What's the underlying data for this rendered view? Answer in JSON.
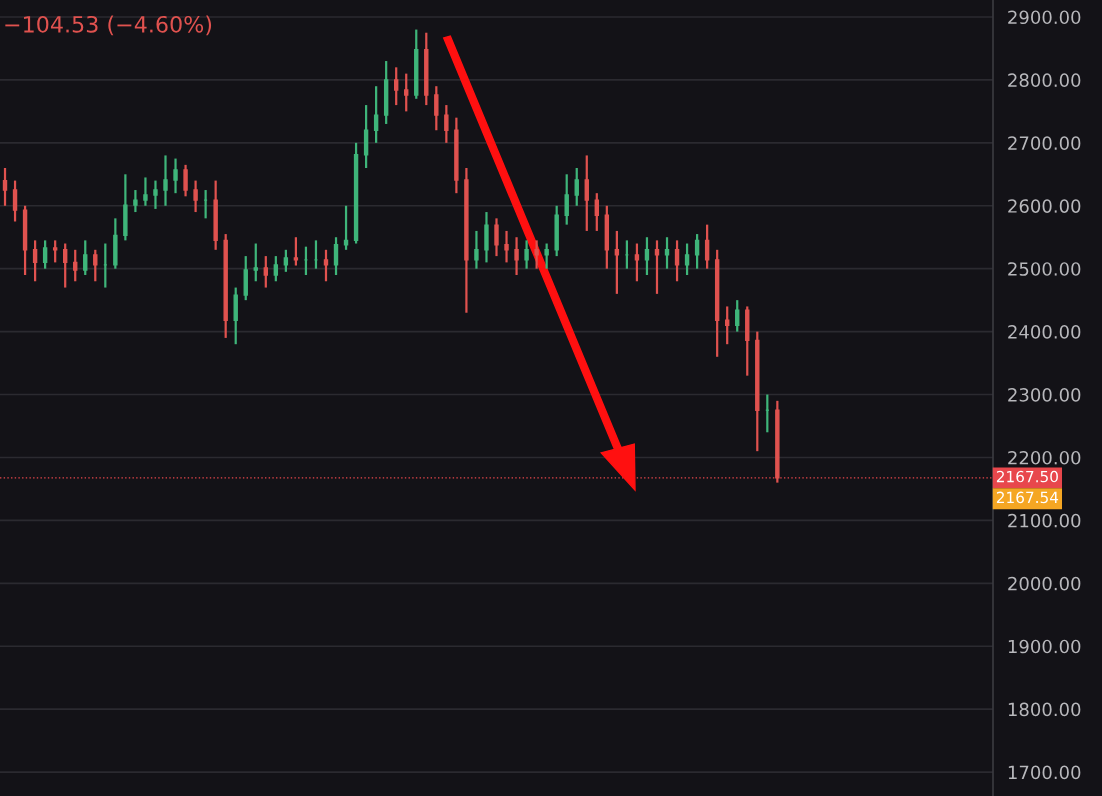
{
  "chart_data": {
    "type": "candlestick",
    "annotations": [
      "−104.53 (−4.60%)",
      "2167.54"
    ],
    "categories": [
      null,
      null,
      null,
      null,
      null,
      null,
      null,
      null,
      null,
      null,
      null,
      null,
      null,
      null,
      null,
      null,
      null,
      null,
      null,
      null,
      null,
      null,
      null,
      null,
      null,
      null,
      null,
      null,
      null,
      null,
      null,
      null,
      null,
      null,
      null,
      null,
      null,
      null,
      null,
      null,
      null,
      null,
      null,
      null,
      null,
      null,
      null,
      null,
      null,
      null,
      null,
      null,
      null,
      null,
      null,
      null,
      null,
      null,
      null,
      null,
      null,
      null,
      null,
      null,
      null,
      null,
      null,
      null,
      null,
      null,
      null,
      null,
      null,
      null,
      null,
      null,
      null,
      null,
      null,
      null,
      null,
      null,
      null,
      null,
      null,
      null,
      null,
      null,
      null,
      null,
      null,
      null,
      null,
      null,
      null,
      null,
      null,
      null,
      null
    ],
    "ohlc": [
      [
        2640,
        2660,
        2600,
        2625
      ],
      [
        2625,
        2640,
        2575,
        2593
      ],
      [
        2593,
        2600,
        2490,
        2530
      ],
      [
        2530,
        2545,
        2480,
        2510
      ],
      [
        2510,
        2545,
        2500,
        2533
      ],
      [
        2533,
        2545,
        2510,
        2530
      ],
      [
        2530,
        2540,
        2470,
        2510
      ],
      [
        2510,
        2530,
        2480,
        2498
      ],
      [
        2498,
        2545,
        2490,
        2522
      ],
      [
        2522,
        2530,
        2480,
        2506
      ],
      [
        2506,
        2540,
        2470,
        2506
      ],
      [
        2506,
        2580,
        2500,
        2553
      ],
      [
        2553,
        2650,
        2545,
        2601
      ],
      [
        2601,
        2625,
        2590,
        2609
      ],
      [
        2609,
        2645,
        2600,
        2617
      ],
      [
        2617,
        2640,
        2595,
        2625
      ],
      [
        2625,
        2680,
        2600,
        2641
      ],
      [
        2641,
        2675,
        2620,
        2657
      ],
      [
        2657,
        2665,
        2615,
        2625
      ],
      [
        2625,
        2640,
        2590,
        2609
      ],
      [
        2609,
        2625,
        2580,
        2609
      ],
      [
        2609,
        2640,
        2530,
        2545
      ],
      [
        2545,
        2555,
        2390,
        2418
      ],
      [
        2418,
        2470,
        2380,
        2458
      ],
      [
        2458,
        2520,
        2450,
        2498
      ],
      [
        2498,
        2540,
        2480,
        2501
      ],
      [
        2501,
        2520,
        2470,
        2490
      ],
      [
        2490,
        2520,
        2480,
        2506
      ],
      [
        2506,
        2530,
        2495,
        2517
      ],
      [
        2517,
        2550,
        2505,
        2514
      ],
      [
        2514,
        2535,
        2490,
        2514
      ],
      [
        2514,
        2545,
        2500,
        2514
      ],
      [
        2514,
        2530,
        2480,
        2506
      ],
      [
        2506,
        2550,
        2490,
        2538
      ],
      [
        2538,
        2600,
        2530,
        2545
      ],
      [
        2545,
        2700,
        2540,
        2681
      ],
      [
        2681,
        2760,
        2660,
        2720
      ],
      [
        2720,
        2790,
        2700,
        2744
      ],
      [
        2744,
        2830,
        2730,
        2800
      ],
      [
        2800,
        2820,
        2760,
        2784
      ],
      [
        2784,
        2810,
        2750,
        2776
      ],
      [
        2776,
        2880,
        2770,
        2848
      ],
      [
        2848,
        2875,
        2760,
        2776
      ],
      [
        2776,
        2790,
        2720,
        2744
      ],
      [
        2744,
        2760,
        2700,
        2720
      ],
      [
        2720,
        2740,
        2620,
        2641
      ],
      [
        2641,
        2660,
        2430,
        2514
      ],
      [
        2514,
        2560,
        2500,
        2530
      ],
      [
        2530,
        2590,
        2510,
        2569
      ],
      [
        2569,
        2580,
        2520,
        2538
      ],
      [
        2538,
        2560,
        2510,
        2530
      ],
      [
        2530,
        2550,
        2490,
        2514
      ],
      [
        2514,
        2545,
        2500,
        2530
      ],
      [
        2530,
        2545,
        2500,
        2522
      ],
      [
        2522,
        2540,
        2500,
        2530
      ],
      [
        2530,
        2600,
        2520,
        2585
      ],
      [
        2585,
        2650,
        2570,
        2617
      ],
      [
        2617,
        2660,
        2600,
        2641
      ],
      [
        2641,
        2680,
        2560,
        2609
      ],
      [
        2609,
        2620,
        2560,
        2585
      ],
      [
        2585,
        2600,
        2500,
        2530
      ],
      [
        2530,
        2560,
        2460,
        2522
      ],
      [
        2522,
        2545,
        2500,
        2522
      ],
      [
        2522,
        2540,
        2480,
        2514
      ],
      [
        2514,
        2550,
        2490,
        2530
      ],
      [
        2530,
        2545,
        2460,
        2522
      ],
      [
        2522,
        2550,
        2500,
        2530
      ],
      [
        2530,
        2545,
        2480,
        2506
      ],
      [
        2506,
        2540,
        2490,
        2522
      ],
      [
        2522,
        2555,
        2500,
        2545
      ],
      [
        2545,
        2570,
        2500,
        2514
      ],
      [
        2514,
        2530,
        2360,
        2418
      ],
      [
        2418,
        2440,
        2380,
        2410
      ],
      [
        2410,
        2450,
        2400,
        2434
      ],
      [
        2434,
        2440,
        2330,
        2386
      ],
      [
        2386,
        2400,
        2210,
        2275
      ],
      [
        2275,
        2300,
        2240,
        2275
      ],
      [
        2275,
        2290,
        2160,
        2167.5
      ],
      null,
      null,
      null,
      null,
      null,
      null,
      null,
      null,
      null,
      null,
      null,
      null,
      null,
      null,
      null,
      null,
      null,
      null,
      null,
      null,
      null
    ],
    "colors": [
      "#e0524f",
      "#e0524f",
      "#e0524f",
      "#e0524f",
      "#3fb57a",
      "#e0524f",
      "#e0524f",
      "#e0524f",
      "#3fb57a",
      "#e0524f",
      "#3fb57a",
      "#3fb57a",
      "#3fb57a",
      "#3fb57a",
      "#3fb57a",
      "#3fb57a",
      "#3fb57a",
      "#3fb57a",
      "#e0524f",
      "#e0524f",
      "#3fb57a",
      "#e0524f",
      "#e0524f",
      "#3fb57a",
      "#3fb57a",
      "#3fb57a",
      "#e0524f",
      "#3fb57a",
      "#3fb57a",
      "#e0524f",
      "#3fb57a",
      "#3fb57a",
      "#e0524f",
      "#3fb57a",
      "#3fb57a",
      "#3fb57a",
      "#3fb57a",
      "#3fb57a",
      "#3fb57a",
      "#e0524f",
      "#e0524f",
      "#3fb57a",
      "#e0524f",
      "#e0524f",
      "#e0524f",
      "#e0524f",
      "#e0524f",
      "#3fb57a",
      "#3fb57a",
      "#e0524f",
      "#e0524f",
      "#e0524f",
      "#3fb57a",
      "#e0524f",
      "#3fb57a",
      "#3fb57a",
      "#3fb57a",
      "#3fb57a",
      "#e0524f",
      "#e0524f",
      "#e0524f",
      "#e0524f",
      "#3fb57a",
      "#e0524f",
      "#3fb57a",
      "#e0524f",
      "#3fb57a",
      "#e0524f",
      "#3fb57a",
      "#3fb57a",
      "#e0524f",
      "#e0524f",
      "#e0524f",
      "#3fb57a",
      "#e0524f",
      "#e0524f",
      "#3fb57a",
      "#e0524f",
      null,
      null,
      null,
      null,
      null,
      null,
      null,
      null,
      null,
      null,
      null,
      null,
      null,
      null,
      null,
      null,
      null,
      null,
      null,
      null,
      null
    ],
    "ylim": [
      1662,
      2927
    ],
    "yticks": [
      {
        "value": 1700,
        "label": "1700.00"
      },
      {
        "value": 1800,
        "label": "1800.00"
      },
      {
        "value": 1900,
        "label": "1900.00"
      },
      {
        "value": 2000,
        "label": "2000.00"
      },
      {
        "value": 2100,
        "label": "2100.00"
      },
      {
        "value": 2200,
        "label": "2200.00"
      },
      {
        "value": 2300,
        "label": "2300.00"
      },
      {
        "value": 2400,
        "label": "2400.00"
      },
      {
        "value": 2500,
        "label": "2500.00"
      },
      {
        "value": 2600,
        "label": "2600.00"
      },
      {
        "value": 2700,
        "label": "2700.00"
      },
      {
        "value": 2800,
        "label": "2800.00"
      },
      {
        "value": 2900,
        "label": "2900.00"
      }
    ],
    "ref_lines": [
      {
        "axis": "y",
        "value": 2167.5,
        "label": "2167.50",
        "color": "#e8474c",
        "line_style": "dotted"
      }
    ],
    "grid": "y"
  }
}
